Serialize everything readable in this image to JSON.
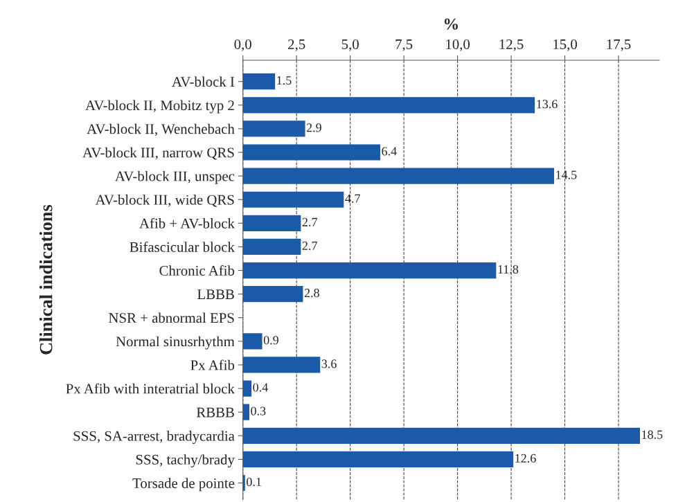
{
  "chart_data": {
    "type": "bar",
    "orientation": "horizontal",
    "xlabel": "%",
    "ylabel": "Clinical indications",
    "categories": [
      "AV-block I",
      "AV-block II, Mobitz typ 2",
      "AV-block II, Wenchebach",
      "AV-block III, narrow QRS",
      "AV-block III, unspec",
      "AV-block III, wide QRS",
      "Afib + AV-block",
      "Bifascicular block",
      "Chronic Afib",
      "LBBB",
      "NSR + abnormal EPS",
      "Normal sinusrhythm",
      "Px Afib",
      "Px Afib with interatrial block",
      "RBBB",
      "SSS, SA-arrest, bradycardia",
      "SSS, tachy/brady",
      "Torsade de pointe"
    ],
    "values": [
      1.5,
      13.6,
      2.9,
      6.4,
      14.5,
      4.7,
      2.7,
      2.7,
      11.8,
      2.8,
      0,
      0.9,
      3.6,
      0.4,
      0.3,
      18.5,
      12.6,
      0.1
    ],
    "value_labels": [
      "1.5",
      "13.6",
      "2.9",
      "6.4",
      "14.5",
      "4.7",
      "2.7",
      "2.7",
      "11.8",
      "2.8",
      null,
      "0.9",
      "3.6",
      "0.4",
      "0.3",
      "18.5",
      "12.6",
      "0.1"
    ],
    "color": "#1a5aa8",
    "xlim": [
      0,
      19.4
    ],
    "xticks": [
      {
        "value": 0,
        "label": "0,0"
      },
      {
        "value": 2.5,
        "label": "2,5"
      },
      {
        "value": 5,
        "label": "5,0"
      },
      {
        "value": 7.5,
        "label": "7,5"
      },
      {
        "value": 10,
        "label": "10,0"
      },
      {
        "value": 12.5,
        "label": "12,5"
      },
      {
        "value": 15,
        "label": "15,0"
      },
      {
        "value": 17.5,
        "label": "17,5"
      }
    ],
    "grid": "x",
    "line_style": "dashed"
  }
}
